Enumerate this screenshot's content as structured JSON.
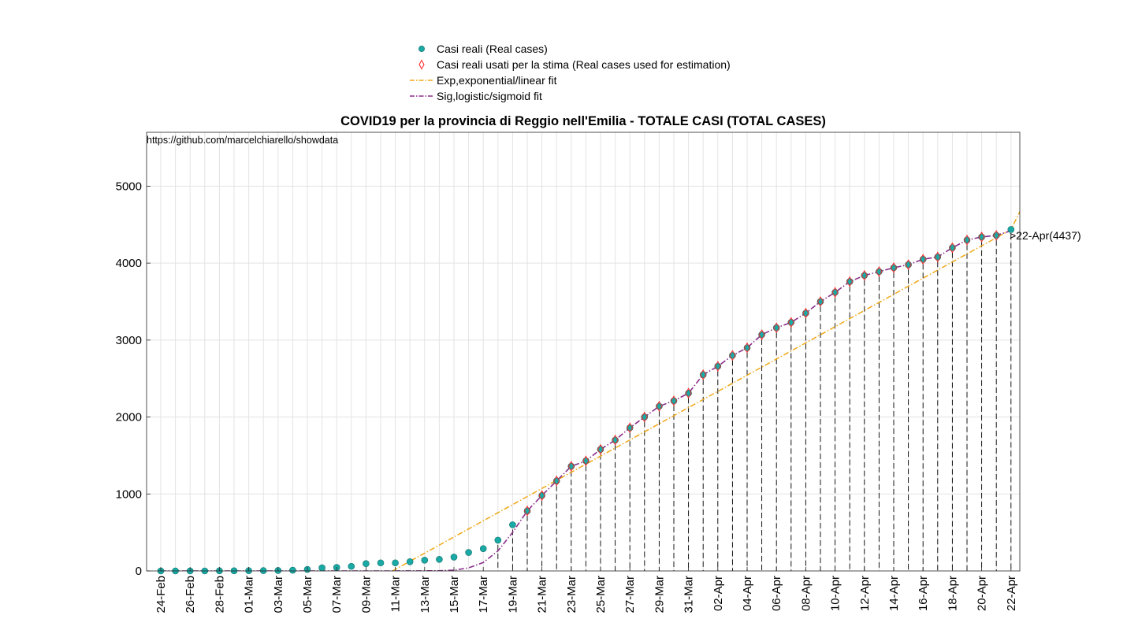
{
  "chart_data": {
    "type": "scatter",
    "title": "COVID19 per la provincia di Reggio nell'Emilia - TOTALE CASI (TOTAL CASES)",
    "source_note": "https://github.com/marcelchiarello/showdata",
    "xlabel": "",
    "ylabel": "",
    "ylim": [
      0,
      5700
    ],
    "y_ticks": [
      0,
      1000,
      2000,
      3000,
      4000,
      5000
    ],
    "grid": true,
    "legend_position": "top",
    "x_tick_labels": [
      "24-Feb",
      "26-Feb",
      "28-Feb",
      "01-Mar",
      "03-Mar",
      "05-Mar",
      "07-Mar",
      "09-Mar",
      "11-Mar",
      "13-Mar",
      "15-Mar",
      "17-Mar",
      "19-Mar",
      "21-Mar",
      "23-Mar",
      "25-Mar",
      "27-Mar",
      "29-Mar",
      "31-Mar",
      "02-Apr",
      "04-Apr",
      "06-Apr",
      "08-Apr",
      "10-Apr",
      "12-Apr",
      "14-Apr",
      "16-Apr",
      "18-Apr",
      "20-Apr",
      "22-Apr"
    ],
    "dates": [
      "24-Feb",
      "25-Feb",
      "26-Feb",
      "27-Feb",
      "28-Feb",
      "29-Feb",
      "01-Mar",
      "02-Mar",
      "03-Mar",
      "04-Mar",
      "05-Mar",
      "06-Mar",
      "07-Mar",
      "08-Mar",
      "09-Mar",
      "10-Mar",
      "11-Mar",
      "12-Mar",
      "13-Mar",
      "14-Mar",
      "15-Mar",
      "16-Mar",
      "17-Mar",
      "18-Mar",
      "19-Mar",
      "20-Mar",
      "21-Mar",
      "22-Mar",
      "23-Mar",
      "24-Mar",
      "25-Mar",
      "26-Mar",
      "27-Mar",
      "28-Mar",
      "29-Mar",
      "30-Mar",
      "31-Mar",
      "01-Apr",
      "02-Apr",
      "03-Apr",
      "04-Apr",
      "05-Apr",
      "06-Apr",
      "07-Apr",
      "08-Apr",
      "09-Apr",
      "10-Apr",
      "11-Apr",
      "12-Apr",
      "13-Apr",
      "14-Apr",
      "15-Apr",
      "16-Apr",
      "17-Apr",
      "18-Apr",
      "19-Apr",
      "20-Apr",
      "21-Apr",
      "22-Apr"
    ],
    "series": [
      {
        "name": "Casi reali (Real cases)",
        "color": "#1aa9a4",
        "marker": "circle",
        "values": [
          0,
          0,
          0,
          0,
          2,
          2,
          3,
          4,
          6,
          10,
          20,
          40,
          45,
          60,
          95,
          105,
          105,
          120,
          140,
          150,
          180,
          240,
          290,
          400,
          600,
          780,
          980,
          1170,
          1360,
          1430,
          1580,
          1700,
          1860,
          2000,
          2140,
          2210,
          2310,
          2550,
          2660,
          2800,
          2900,
          3070,
          3160,
          3230,
          3350,
          3500,
          3620,
          3760,
          3840,
          3890,
          3940,
          3980,
          4050,
          4080,
          4200,
          4300,
          4340,
          4360,
          4437
        ]
      },
      {
        "name": "Casi reali usati per la stima (Real cases used for estimation)",
        "color": "#ff2020",
        "marker": "diamond",
        "values": [
          null,
          null,
          null,
          null,
          null,
          null,
          null,
          null,
          null,
          null,
          null,
          null,
          null,
          null,
          null,
          null,
          null,
          null,
          null,
          null,
          null,
          null,
          null,
          null,
          null,
          780,
          980,
          1170,
          1360,
          1430,
          1580,
          1700,
          1860,
          2000,
          2140,
          2210,
          2310,
          2550,
          2660,
          2800,
          2900,
          3070,
          3160,
          3230,
          3350,
          3500,
          3620,
          3760,
          3840,
          3890,
          3940,
          3980,
          4050,
          4080,
          4200,
          4300,
          4340,
          4360,
          null
        ]
      },
      {
        "name": "Exp,exponential/linear fit",
        "color": "#f0a818",
        "style": "dashdot",
        "x_index": [
          15.8,
          58,
          59.3
        ],
        "values": [
          0,
          4435,
          4940
        ]
      },
      {
        "name": "Sig,logistic/sigmoid fit",
        "color": "#8b2f8b",
        "style": "dashdot"
      }
    ],
    "annotation": ">22-Apr(4437)"
  }
}
